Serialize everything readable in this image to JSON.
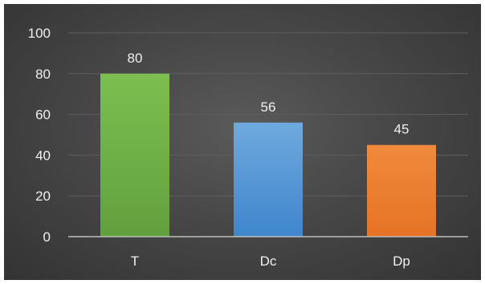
{
  "chart_data": {
    "type": "bar",
    "categories": [
      "T",
      "Dc",
      "Dp"
    ],
    "values": [
      80,
      56,
      45
    ],
    "data_labels": [
      "80",
      "56",
      "45"
    ],
    "colors": [
      "#70ad47",
      "#5b9bd5",
      "#ed7d31"
    ],
    "ylim": [
      0,
      100
    ],
    "yticks": [
      "0",
      "20",
      "40",
      "60",
      "80",
      "100"
    ],
    "ytick_values": [
      0,
      20,
      40,
      60,
      80,
      100
    ],
    "grid": true,
    "legend": "none",
    "background": "#3f3f3f"
  }
}
